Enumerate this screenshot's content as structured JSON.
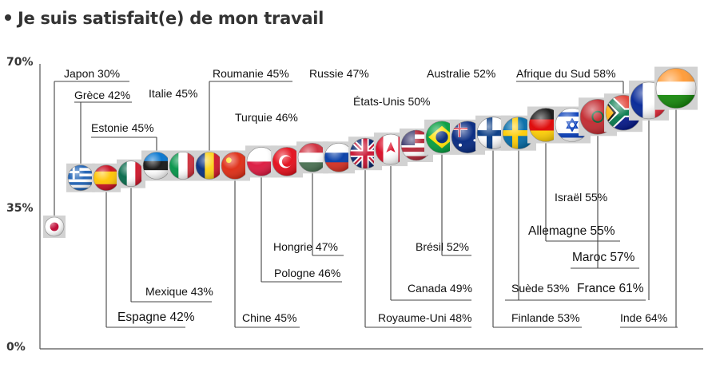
{
  "title": "Je suis satisfait(e) de mon travail",
  "chart_data": {
    "type": "scatter",
    "title": "Je suis satisfait(e) de mon travail",
    "ylim": [
      0,
      70
    ],
    "yticks": [
      "70%",
      "35%",
      "0%"
    ],
    "xlabel": "",
    "ylabel": "",
    "grid": false,
    "legend": "none",
    "points": [
      {
        "country": "Japon",
        "label": "Japon 30%",
        "value": 30
      },
      {
        "country": "Grèce",
        "label": "Grèce 42%",
        "value": 42
      },
      {
        "country": "Espagne",
        "label": "Espagne 42%",
        "value": 42
      },
      {
        "country": "Mexique",
        "label": "Mexique 43%",
        "value": 43
      },
      {
        "country": "Estonie",
        "label": "Estonie 45%",
        "value": 45
      },
      {
        "country": "Italie",
        "label": "Italie 45%",
        "value": 45
      },
      {
        "country": "Roumanie",
        "label": "Roumanie  45%",
        "value": 45
      },
      {
        "country": "Chine",
        "label": "Chine 45%",
        "value": 45
      },
      {
        "country": "Pologne",
        "label": "Pologne 46%",
        "value": 46
      },
      {
        "country": "Turquie",
        "label": "Turquie 46%",
        "value": 46
      },
      {
        "country": "Hongrie",
        "label": "Hongrie 47%",
        "value": 47
      },
      {
        "country": "Russie",
        "label": "Russie 47%",
        "value": 47
      },
      {
        "country": "Royaume-Uni",
        "label": "Royaume-Uni 48%",
        "value": 48
      },
      {
        "country": "Canada",
        "label": "Canada 49%",
        "value": 49
      },
      {
        "country": "États-Unis",
        "label": "États-Unis 50%",
        "value": 50
      },
      {
        "country": "Brésil",
        "label": "Brésil 52%",
        "value": 52
      },
      {
        "country": "Australie",
        "label": "Australie  52%",
        "value": 52
      },
      {
        "country": "Finlande",
        "label": "Finlande 53%",
        "value": 53
      },
      {
        "country": "Suède",
        "label": "Suède 53%",
        "value": 53
      },
      {
        "country": "Allemagne",
        "label": "Allemagne 55%",
        "value": 55
      },
      {
        "country": "Israël",
        "label": "Israël 55%",
        "value": 55
      },
      {
        "country": "Maroc",
        "label": "Maroc 57%",
        "value": 57
      },
      {
        "country": "Afrique du Sud",
        "label": "Afrique du Sud 58%",
        "value": 58
      },
      {
        "country": "France",
        "label": "France  61%",
        "value": 61
      },
      {
        "country": "Inde",
        "label": "Inde 64%",
        "value": 64
      }
    ]
  }
}
